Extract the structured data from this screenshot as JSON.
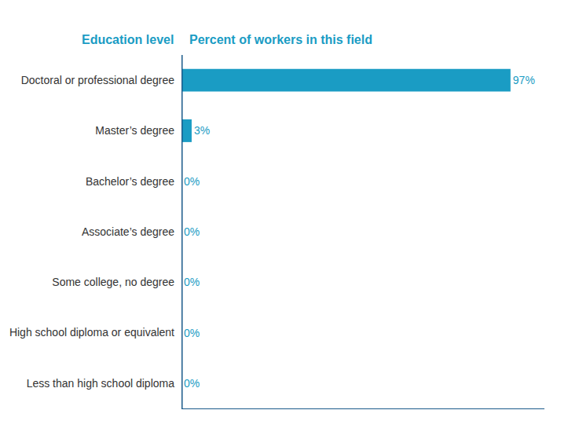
{
  "chart_data": {
    "type": "bar",
    "orientation": "horizontal",
    "ylabel": "Education level",
    "xlabel": "Percent of workers in this field",
    "categories": [
      "Doctoral or professional degree",
      "Master’s degree",
      "Bachelor’s degree",
      "Associate’s degree",
      "Some college, no degree",
      "High school diploma or equivalent",
      "Less than high school diploma"
    ],
    "values": [
      97,
      3,
      0,
      0,
      0,
      0,
      0
    ],
    "value_labels": [
      "97%",
      "3%",
      "0%",
      "0%",
      "0%",
      "0%",
      "0%"
    ],
    "data_labels": true,
    "color": "#1a9cc4",
    "xlim": [
      0,
      107
    ],
    "tick_labels": false,
    "grid": false
  }
}
